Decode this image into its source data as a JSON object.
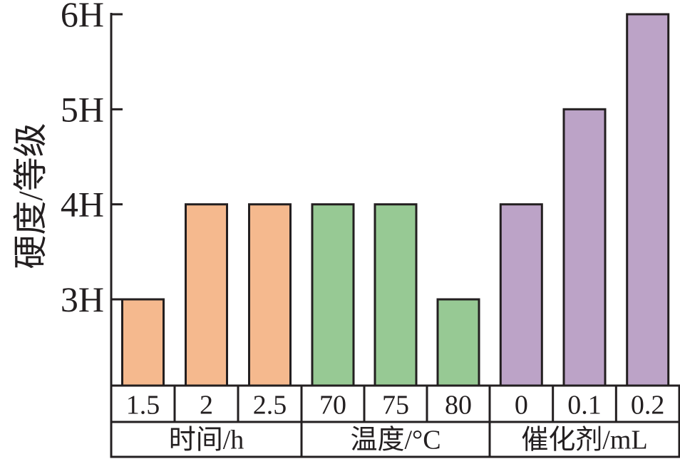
{
  "chart_data": {
    "type": "bar",
    "ylabel": "硬度/等级",
    "y_ticks": [
      "3H",
      "4H",
      "5H",
      "6H"
    ],
    "ylim": [
      2.1,
      6
    ],
    "groups": [
      {
        "name": "时间/h",
        "color": "#F5B98E",
        "categories": [
          "1.5",
          "2",
          "2.5"
        ],
        "values": [
          3,
          4,
          4
        ]
      },
      {
        "name": "温度/°C",
        "color": "#97C994",
        "categories": [
          "70",
          "75",
          "80"
        ],
        "values": [
          4,
          4,
          3
        ]
      },
      {
        "name": "催化剂/mL",
        "color": "#BCA3C7",
        "categories": [
          "0",
          "0.1",
          "0.2"
        ],
        "values": [
          4,
          5,
          6
        ]
      }
    ]
  }
}
